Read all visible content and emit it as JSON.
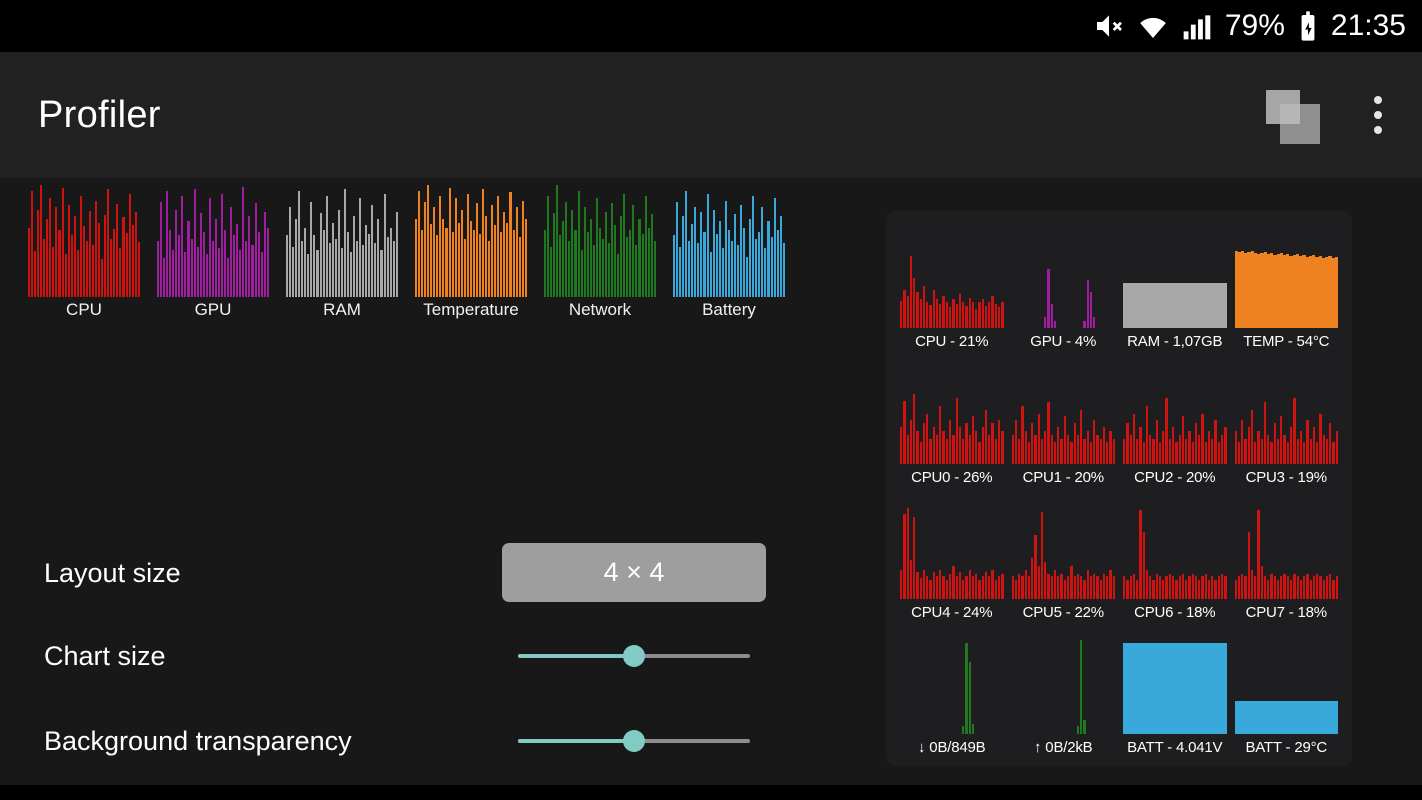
{
  "status_bar": {
    "battery_percent": "79%",
    "time": "21:35"
  },
  "app_bar": {
    "title": "Profiler"
  },
  "icons": {
    "status": [
      "volume-muted",
      "wifi",
      "cellular-signal",
      "battery"
    ],
    "app_bar": [
      "widgets-overlay",
      "overflow-menu"
    ]
  },
  "colors": {
    "cpu_red": "#cf1311",
    "gpu_purple": "#a01da0",
    "ram_gray": "#a8a8a8",
    "temp_orange": "#ef8220",
    "network_green": "#1f7a1f",
    "battery_blue": "#39a9dc",
    "accent_teal": "#80cbc4",
    "button_gray": "#9e9e9e"
  },
  "selector_charts": [
    {
      "label": "CPU",
      "color": "#cf1311",
      "bars": [
        0.62,
        0.95,
        0.41,
        0.78,
        1.0,
        0.52,
        0.7,
        0.88,
        0.45,
        0.8,
        0.6,
        0.97,
        0.38,
        0.82,
        0.55,
        0.72,
        0.42,
        0.9,
        0.63,
        0.5,
        0.77,
        0.46,
        0.86,
        0.66,
        0.34,
        0.73,
        0.96,
        0.52,
        0.61,
        0.83,
        0.44,
        0.71,
        0.57,
        0.92,
        0.64,
        0.76,
        0.49
      ]
    },
    {
      "label": "GPU",
      "color": "#a01da0",
      "bars": [
        0.5,
        0.85,
        0.35,
        0.95,
        0.6,
        0.42,
        0.78,
        0.55,
        0.9,
        0.4,
        0.68,
        0.52,
        0.96,
        0.45,
        0.75,
        0.58,
        0.38,
        0.88,
        0.5,
        0.7,
        0.44,
        0.92,
        0.6,
        0.35,
        0.8,
        0.55,
        0.65,
        0.42,
        0.98,
        0.5,
        0.72,
        0.46,
        0.84,
        0.58,
        0.4,
        0.76,
        0.62
      ]
    },
    {
      "label": "RAM",
      "color": "#a8a8a8",
      "bars": [
        0.55,
        0.8,
        0.45,
        0.7,
        0.95,
        0.5,
        0.62,
        0.38,
        0.85,
        0.55,
        0.42,
        0.75,
        0.6,
        0.9,
        0.48,
        0.66,
        0.52,
        0.78,
        0.44,
        0.96,
        0.58,
        0.4,
        0.72,
        0.5,
        0.88,
        0.46,
        0.64,
        0.56,
        0.82,
        0.48,
        0.7,
        0.42,
        0.92,
        0.54,
        0.62,
        0.5,
        0.76
      ]
    },
    {
      "label": "Temperature",
      "color": "#ef8220",
      "bars": [
        0.7,
        0.95,
        0.6,
        0.85,
        1.0,
        0.65,
        0.8,
        0.55,
        0.9,
        0.7,
        0.62,
        0.97,
        0.58,
        0.88,
        0.66,
        0.78,
        0.52,
        0.92,
        0.68,
        0.6,
        0.84,
        0.56,
        0.96,
        0.72,
        0.5,
        0.82,
        0.64,
        0.9,
        0.58,
        0.76,
        0.66,
        0.94,
        0.6,
        0.8,
        0.54,
        0.86,
        0.7
      ]
    },
    {
      "label": "Network",
      "color": "#1f7a1f",
      "bars": [
        0.6,
        0.9,
        0.45,
        0.75,
        1.0,
        0.55,
        0.68,
        0.85,
        0.5,
        0.78,
        0.6,
        0.95,
        0.42,
        0.8,
        0.58,
        0.7,
        0.46,
        0.88,
        0.62,
        0.52,
        0.76,
        0.48,
        0.84,
        0.64,
        0.38,
        0.72,
        0.92,
        0.54,
        0.6,
        0.82,
        0.46,
        0.7,
        0.56,
        0.9,
        0.62,
        0.74,
        0.5
      ]
    },
    {
      "label": "Battery",
      "color": "#39a9dc",
      "bars": [
        0.55,
        0.85,
        0.45,
        0.72,
        0.95,
        0.5,
        0.65,
        0.8,
        0.48,
        0.76,
        0.58,
        0.92,
        0.4,
        0.78,
        0.56,
        0.68,
        0.44,
        0.86,
        0.6,
        0.5,
        0.74,
        0.46,
        0.82,
        0.62,
        0.36,
        0.7,
        0.9,
        0.52,
        0.58,
        0.8,
        0.44,
        0.68,
        0.54,
        0.88,
        0.6,
        0.72,
        0.48
      ]
    }
  ],
  "settings": {
    "layout_size": {
      "label": "Layout size",
      "value": "4 × 4"
    },
    "chart_size": {
      "label": "Chart size",
      "percent": 50
    },
    "background_transparency": {
      "label": "Background transparency",
      "percent": 50
    }
  },
  "preview": {
    "cells": [
      {
        "label": "CPU - 21%",
        "color": "#cf1311",
        "bars": [
          0.28,
          0.4,
          0.34,
          0.75,
          0.52,
          0.38,
          0.3,
          0.44,
          0.27,
          0.24,
          0.4,
          0.3,
          0.25,
          0.34,
          0.27,
          0.22,
          0.3,
          0.25,
          0.36,
          0.27,
          0.23,
          0.32,
          0.27,
          0.2,
          0.27,
          0.3,
          0.23,
          0.27,
          0.34,
          0.25,
          0.22,
          0.27
        ]
      },
      {
        "label": "GPU - 4%",
        "color": "#a01da0",
        "bars": [
          0,
          0,
          0,
          0,
          0,
          0,
          0,
          0,
          0,
          0,
          0.12,
          0.62,
          0.25,
          0.08,
          0,
          0,
          0,
          0,
          0,
          0,
          0,
          0,
          0.08,
          0.5,
          0.38,
          0.12,
          0,
          0,
          0,
          0,
          0,
          0
        ]
      },
      {
        "label": "RAM - 1,07GB",
        "color": "#a8a8a8",
        "solid": true,
        "bars": [
          0.47
        ]
      },
      {
        "label": "TEMP - 54°C",
        "color": "#ef8220",
        "solid": true,
        "bars": [
          0.8,
          0.79,
          0.8,
          0.78,
          0.79,
          0.8,
          0.78,
          0.77,
          0.78,
          0.79,
          0.77,
          0.78,
          0.76,
          0.77,
          0.78,
          0.76,
          0.77,
          0.75,
          0.76,
          0.77,
          0.75,
          0.76,
          0.74,
          0.75,
          0.76,
          0.74,
          0.75,
          0.73,
          0.74,
          0.75,
          0.73,
          0.74
        ]
      },
      {
        "label": "CPU0 - 26%",
        "color": "#cf1311",
        "bars": [
          0.38,
          0.65,
          0.3,
          0.45,
          0.72,
          0.34,
          0.22,
          0.42,
          0.52,
          0.26,
          0.38,
          0.3,
          0.6,
          0.34,
          0.26,
          0.45,
          0.3,
          0.68,
          0.38,
          0.26,
          0.42,
          0.3,
          0.5,
          0.34,
          0.22,
          0.38,
          0.56,
          0.3,
          0.42,
          0.26,
          0.45,
          0.34
        ]
      },
      {
        "label": "CPU1 - 20%",
        "color": "#cf1311",
        "bars": [
          0.3,
          0.45,
          0.26,
          0.6,
          0.34,
          0.22,
          0.42,
          0.3,
          0.52,
          0.26,
          0.34,
          0.64,
          0.3,
          0.22,
          0.38,
          0.26,
          0.5,
          0.3,
          0.22,
          0.42,
          0.3,
          0.56,
          0.26,
          0.34,
          0.22,
          0.45,
          0.3,
          0.26,
          0.38,
          0.22,
          0.34,
          0.26
        ]
      },
      {
        "label": "CPU2 - 20%",
        "color": "#cf1311",
        "bars": [
          0.26,
          0.42,
          0.3,
          0.52,
          0.26,
          0.38,
          0.22,
          0.6,
          0.3,
          0.26,
          0.45,
          0.22,
          0.34,
          0.68,
          0.26,
          0.38,
          0.22,
          0.3,
          0.5,
          0.26,
          0.34,
          0.22,
          0.42,
          0.3,
          0.52,
          0.22,
          0.34,
          0.26,
          0.45,
          0.22,
          0.3,
          0.38
        ]
      },
      {
        "label": "CPU3 - 19%",
        "color": "#cf1311",
        "bars": [
          0.34,
          0.22,
          0.45,
          0.26,
          0.38,
          0.56,
          0.22,
          0.34,
          0.26,
          0.64,
          0.3,
          0.22,
          0.42,
          0.26,
          0.5,
          0.3,
          0.22,
          0.38,
          0.68,
          0.26,
          0.34,
          0.22,
          0.45,
          0.26,
          0.38,
          0.22,
          0.52,
          0.3,
          0.26,
          0.42,
          0.22,
          0.34
        ]
      },
      {
        "label": "CPU4 - 24%",
        "color": "#cf1311",
        "bars": [
          0.3,
          0.88,
          0.95,
          0.4,
          0.85,
          0.28,
          0.22,
          0.3,
          0.24,
          0.2,
          0.28,
          0.24,
          0.3,
          0.24,
          0.2,
          0.26,
          0.34,
          0.24,
          0.28,
          0.2,
          0.24,
          0.3,
          0.24,
          0.26,
          0.2,
          0.24,
          0.28,
          0.24,
          0.3,
          0.2,
          0.24,
          0.26
        ]
      },
      {
        "label": "CPU5 - 22%",
        "color": "#cf1311",
        "bars": [
          0.24,
          0.2,
          0.26,
          0.24,
          0.3,
          0.24,
          0.42,
          0.66,
          0.34,
          0.9,
          0.38,
          0.26,
          0.24,
          0.3,
          0.24,
          0.26,
          0.2,
          0.24,
          0.34,
          0.24,
          0.26,
          0.24,
          0.2,
          0.3,
          0.24,
          0.26,
          0.24,
          0.2,
          0.26,
          0.24,
          0.3,
          0.24
        ]
      },
      {
        "label": "CPU6 - 18%",
        "color": "#cf1311",
        "bars": [
          0.24,
          0.2,
          0.24,
          0.26,
          0.2,
          0.92,
          0.7,
          0.3,
          0.24,
          0.2,
          0.26,
          0.24,
          0.2,
          0.24,
          0.26,
          0.24,
          0.2,
          0.24,
          0.26,
          0.2,
          0.24,
          0.26,
          0.24,
          0.2,
          0.24,
          0.26,
          0.2,
          0.24,
          0.2,
          0.24,
          0.26,
          0.24
        ]
      },
      {
        "label": "CPU7 - 18%",
        "color": "#cf1311",
        "bars": [
          0.2,
          0.24,
          0.26,
          0.24,
          0.7,
          0.3,
          0.24,
          0.92,
          0.34,
          0.24,
          0.2,
          0.26,
          0.24,
          0.2,
          0.24,
          0.26,
          0.24,
          0.2,
          0.26,
          0.24,
          0.2,
          0.24,
          0.26,
          0.2,
          0.24,
          0.26,
          0.24,
          0.2,
          0.24,
          0.26,
          0.2,
          0.24
        ]
      },
      {
        "label": "↓ 0B/849B",
        "color": "#1f7a1f",
        "bars": [
          0,
          0,
          0,
          0,
          0,
          0,
          0,
          0,
          0,
          0,
          0,
          0,
          0,
          0,
          0,
          0,
          0,
          0,
          0,
          0.08,
          0.95,
          0.75,
          0.1,
          0,
          0,
          0,
          0,
          0,
          0,
          0,
          0,
          0
        ]
      },
      {
        "label": "↑ 0B/2kB",
        "color": "#1f7a1f",
        "bars": [
          0,
          0,
          0,
          0,
          0,
          0,
          0,
          0,
          0,
          0,
          0,
          0,
          0,
          0,
          0,
          0,
          0,
          0,
          0,
          0,
          0.08,
          0.98,
          0.15,
          0,
          0,
          0,
          0,
          0,
          0,
          0,
          0,
          0
        ]
      },
      {
        "label": "BATT - 4.041V",
        "color": "#39a9dc",
        "solid": true,
        "bars": [
          0.95
        ]
      },
      {
        "label": "BATT - 29°C",
        "color": "#39a9dc",
        "solid": true,
        "bars": [
          0.34
        ]
      }
    ]
  }
}
